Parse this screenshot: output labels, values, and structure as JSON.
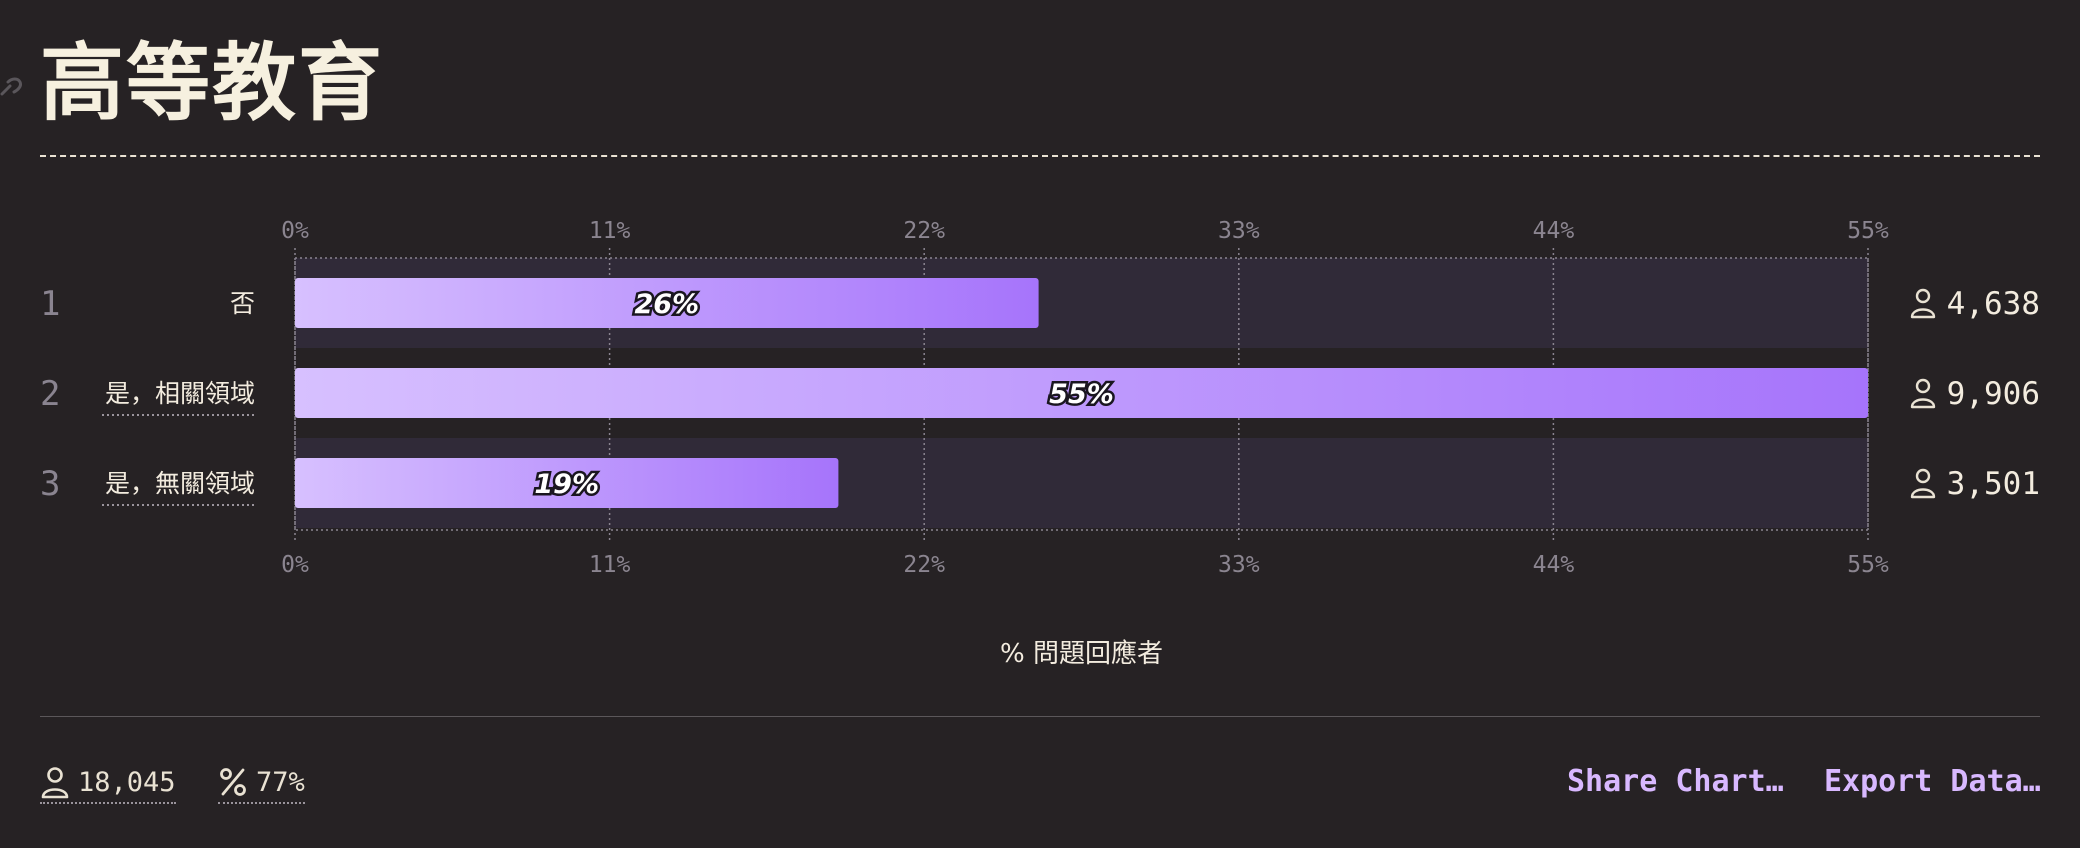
{
  "title": "高等教育",
  "icons": {
    "title_anchor": "link-icon",
    "respondents": "user-icon",
    "percent": "percent-icon"
  },
  "colors": {
    "background": "#262224",
    "bar_start": "#d7c0ff",
    "bar_end": "#a674fb",
    "row_band": "#302a38",
    "accent": "#d8b8ff"
  },
  "chart_data": {
    "type": "bar",
    "orientation": "horizontal",
    "categories": [
      "否",
      "是，相關領域",
      "是，無關領域"
    ],
    "ranks": [
      "1",
      "2",
      "3"
    ],
    "values": [
      26,
      55,
      19
    ],
    "value_labels": [
      "26%",
      "55%",
      "19%"
    ],
    "counts": [
      "4,638",
      "9,906",
      "3,501"
    ],
    "xlabel": "% 問題回應者",
    "xlim": [
      0,
      55
    ],
    "ticks": [
      "0%",
      "11%",
      "22%",
      "33%",
      "44%",
      "55%"
    ],
    "tick_values": [
      0,
      11,
      22,
      33,
      44,
      55
    ],
    "grid": true
  },
  "footer": {
    "respondents": "18,045",
    "percent": "77%",
    "share_label": "Share Chart…",
    "export_label": "Export Data…"
  }
}
